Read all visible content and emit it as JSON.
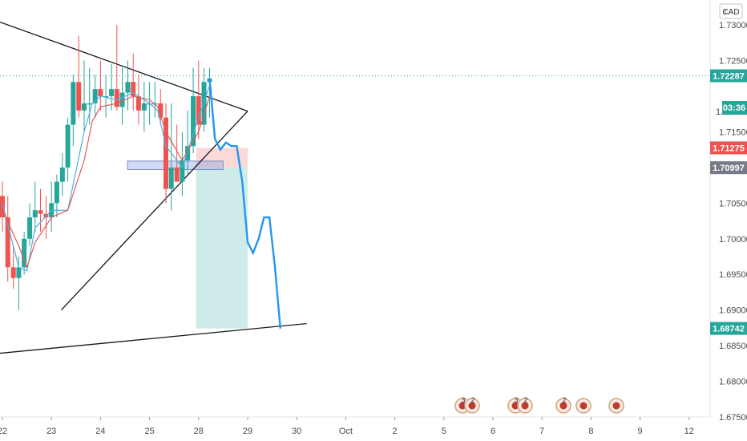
{
  "chart_data": {
    "type": "line",
    "symbol_currency": "CAD",
    "countdown": "03:36",
    "y_ticks": [
      1.675,
      1.68,
      1.685,
      1.69,
      1.695,
      1.7,
      1.705,
      1.71,
      1.715,
      1.72,
      1.725,
      1.73
    ],
    "y_tick_labels": [
      "1.67500",
      "1.68000",
      "1.68500",
      "1.69000",
      "1.69500",
      "1.70000",
      "1.70500",
      "",
      "1.71500",
      "",
      "1.72500",
      "1.73000"
    ],
    "y_top_label": "1.",
    "y_center_label": "1.",
    "x_tick_labels": [
      "22",
      "23",
      "24",
      "25",
      "28",
      "29",
      "30",
      "Oct",
      "2",
      "5",
      "6",
      "7",
      "8",
      "9",
      "12"
    ],
    "price_tags": [
      {
        "label": "1.72287",
        "value": 1.72287,
        "color": "#26a69a"
      },
      {
        "label": "1.71275",
        "value": 1.71275,
        "color": "#ef5350"
      },
      {
        "label": "1.70997",
        "value": 1.70997,
        "color": "#787b86"
      },
      {
        "label": "1.68742",
        "value": 1.68742,
        "color": "#26a69a"
      }
    ],
    "current_price": 1.72287,
    "ylim": [
      1.675,
      1.7335
    ],
    "trendlines": [
      {
        "x": [
          20.7,
          27.0
        ],
        "y": [
          1.7335,
          1.7179
        ]
      },
      {
        "x": [
          23.2,
          27.0
        ],
        "y": [
          1.69,
          1.7179
        ]
      },
      {
        "x": [
          21.9,
          28.2
        ],
        "y": [
          1.6839,
          1.6881
        ]
      }
    ],
    "short_position": {
      "x_start": 25.95,
      "x_end": 27.0,
      "entry": 1.70997,
      "stop": 1.71275,
      "target": 1.68742
    },
    "support_zone": {
      "x_start": 24.55,
      "x_end": 26.5,
      "high": 1.7109,
      "low": 1.7097
    },
    "series": [
      {
        "type": "candlestick",
        "x": [
          22.0,
          22.33,
          22.67,
          23.0,
          23.33,
          23.67,
          24.0,
          24.33,
          24.67,
          25.0,
          25.33,
          25.67,
          26.0,
          26.33,
          26.67,
          27.0,
          27.33,
          27.67,
          28.0,
          28.33,
          28.67,
          29.0,
          29.33,
          29.67,
          30.0,
          30.33,
          30.67,
          31.0,
          31.33,
          31.67,
          32.0,
          32.33,
          32.67,
          33.0,
          33.33,
          33.67,
          34.0,
          34.33,
          34.67
        ],
        "open": [
          1.706,
          1.703,
          1.696,
          1.6945,
          1.696,
          1.7,
          1.703,
          1.704,
          1.7035,
          1.703,
          1.705,
          1.708,
          1.71,
          1.716,
          1.722,
          1.718,
          1.719,
          1.719,
          1.721,
          1.72,
          1.72,
          1.721,
          1.7185,
          1.7205,
          1.722,
          1.72,
          1.718,
          1.719,
          1.719,
          1.719,
          1.717,
          1.707,
          1.71,
          1.708,
          1.711,
          1.713,
          1.72,
          1.716,
          1.722
        ],
        "high": [
          1.708,
          1.706,
          1.699,
          1.6975,
          1.701,
          1.705,
          1.708,
          1.707,
          1.706,
          1.708,
          1.709,
          1.712,
          1.717,
          1.723,
          1.7285,
          1.725,
          1.724,
          1.723,
          1.725,
          1.723,
          1.7245,
          1.73,
          1.724,
          1.725,
          1.726,
          1.723,
          1.722,
          1.722,
          1.722,
          1.721,
          1.719,
          1.719,
          1.716,
          1.715,
          1.718,
          1.724,
          1.725,
          1.724,
          1.724
        ],
        "low": [
          1.701,
          1.694,
          1.693,
          1.69,
          1.695,
          1.699,
          1.701,
          1.701,
          1.7,
          1.701,
          1.703,
          1.706,
          1.708,
          1.713,
          1.717,
          1.715,
          1.716,
          1.717,
          1.718,
          1.717,
          1.718,
          1.718,
          1.716,
          1.718,
          1.718,
          1.716,
          1.715,
          1.716,
          1.717,
          1.716,
          1.705,
          1.704,
          1.708,
          1.706,
          1.709,
          1.712,
          1.714,
          1.715,
          1.717
        ],
        "close": [
          1.703,
          1.696,
          1.6945,
          1.696,
          1.7,
          1.703,
          1.704,
          1.7035,
          1.703,
          1.705,
          1.708,
          1.71,
          1.716,
          1.722,
          1.718,
          1.719,
          1.719,
          1.721,
          1.72,
          1.72,
          1.721,
          1.7185,
          1.7205,
          1.722,
          1.72,
          1.718,
          1.719,
          1.719,
          1.719,
          1.717,
          1.707,
          1.71,
          1.708,
          1.711,
          1.713,
          1.72,
          1.716,
          1.722,
          1.7225
        ]
      },
      {
        "type": "line",
        "name": "",
        "color": "#4fb0e0",
        "x": [
          22.0,
          23.0,
          23.5,
          24.0,
          25.0,
          26.0,
          27.0,
          27.5,
          28.0,
          29.0,
          30.0,
          31.0,
          31.5,
          32.0,
          33.0,
          34.0,
          34.67
        ],
        "y": [
          1.705,
          1.696,
          1.6955,
          1.7015,
          1.704,
          1.704,
          1.715,
          1.719,
          1.72,
          1.7195,
          1.7205,
          1.719,
          1.718,
          1.713,
          1.71,
          1.717,
          1.7215
        ]
      },
      {
        "type": "line",
        "name": "",
        "color": "#e05a5a",
        "x": [
          22.0,
          23.0,
          23.5,
          24.0,
          25.0,
          26.0,
          27.0,
          27.5,
          28.0,
          29.0,
          30.0,
          31.0,
          31.5,
          32.0,
          33.0,
          34.0,
          34.67
        ],
        "y": [
          1.704,
          1.699,
          1.696,
          1.6995,
          1.703,
          1.704,
          1.711,
          1.7165,
          1.7185,
          1.719,
          1.72,
          1.7195,
          1.7185,
          1.715,
          1.711,
          1.715,
          1.72
        ]
      },
      {
        "type": "line",
        "name": "",
        "color": "#2196f3",
        "x": [
          34.67,
          35.0,
          35.33,
          35.67,
          36.0,
          36.33,
          36.67,
          37.0,
          37.33,
          37.67,
          38.0,
          38.33,
          38.67,
          39.0
        ],
        "y": [
          1.7225,
          1.714,
          1.7125,
          1.7135,
          1.713,
          1.713,
          1.708,
          1.6995,
          1.698,
          1.7,
          1.703,
          1.703,
          1.696,
          1.6874
        ]
      }
    ]
  },
  "event_markers": [
    {
      "label": "3"
    },
    {
      "label": "2"
    },
    {
      "label": "3"
    },
    {
      "label": "2"
    },
    {
      "label": "2"
    },
    {
      "label": ""
    },
    {
      "label": ""
    }
  ]
}
